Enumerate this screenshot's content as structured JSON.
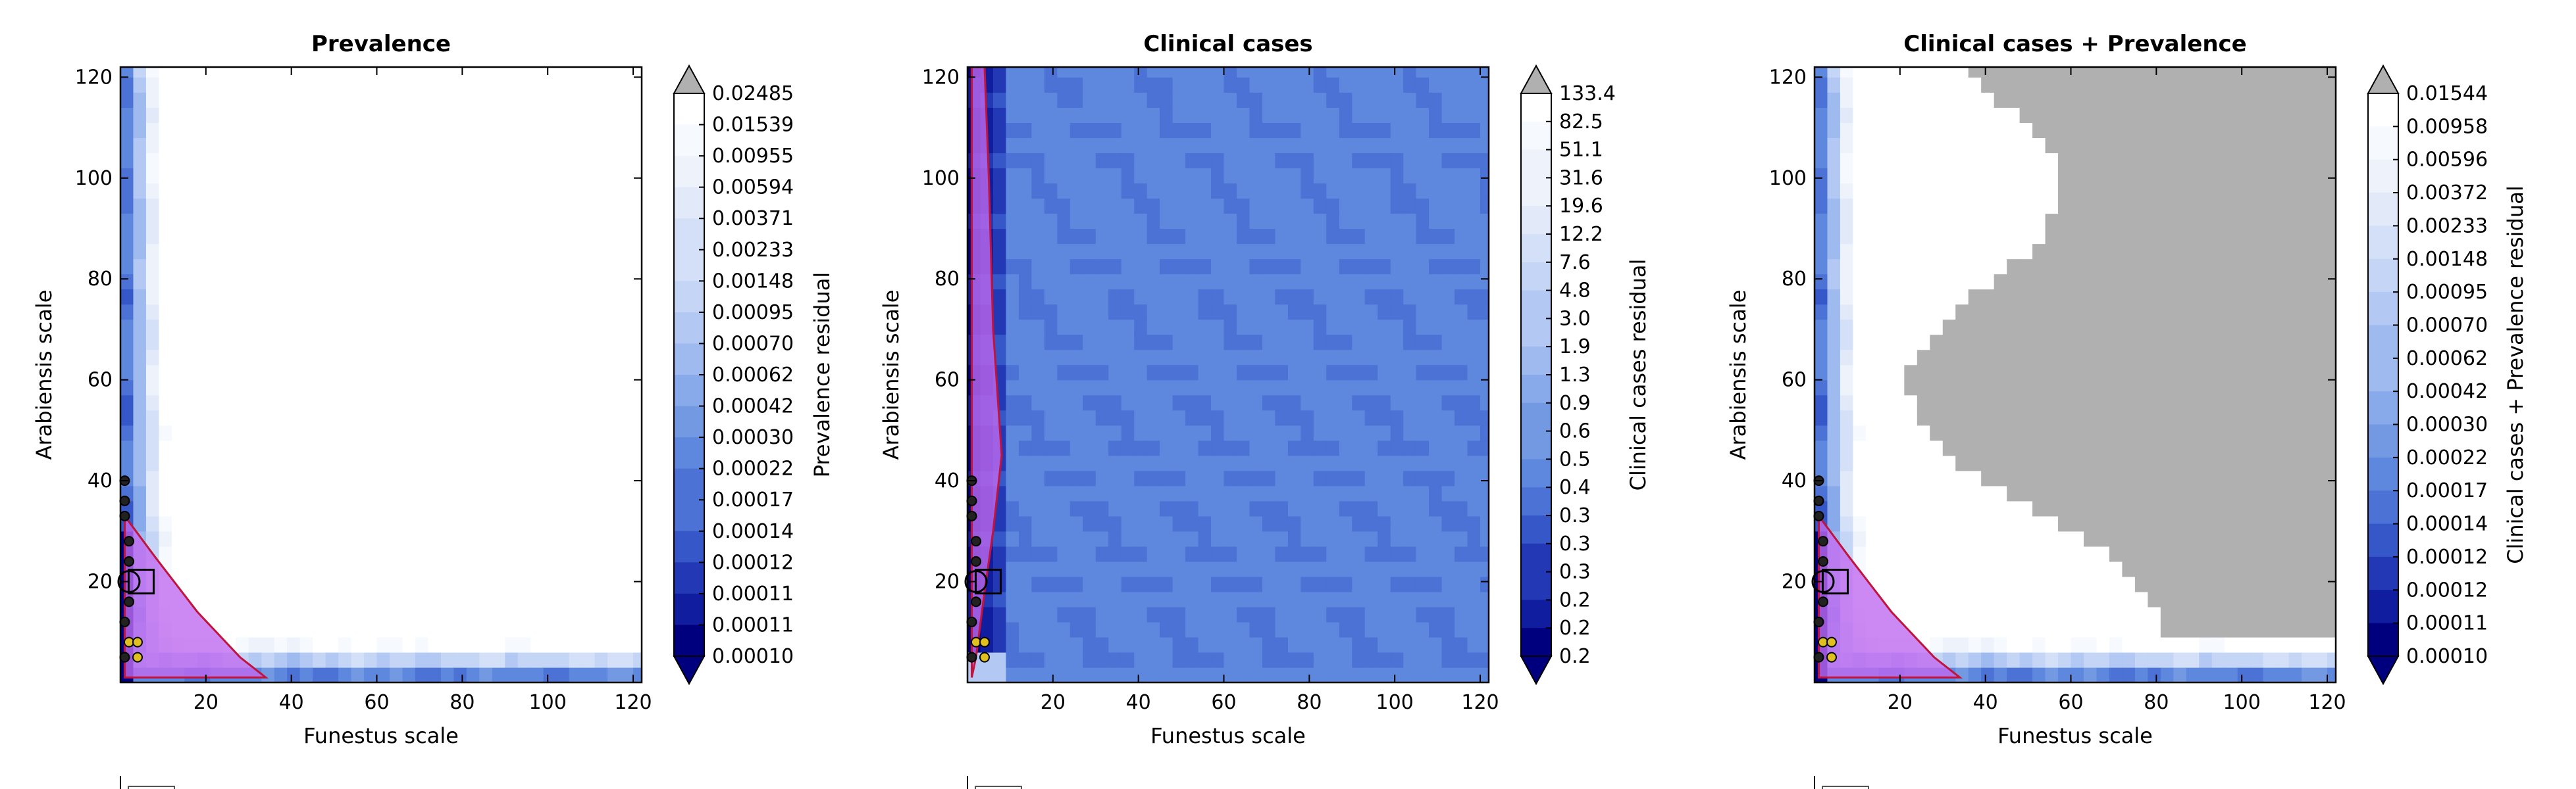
{
  "chart_data": [
    {
      "type": "heatmap",
      "title": "Prevalence",
      "xlabel": "Funestus scale",
      "ylabel": "Arabiensis scale",
      "xlim": [
        0,
        122
      ],
      "ylim": [
        0,
        122
      ],
      "xticks": [
        "20",
        "40",
        "60",
        "80",
        "100",
        "120"
      ],
      "yticks": [
        "20",
        "40",
        "60",
        "80",
        "100",
        "120"
      ],
      "colorbar_label": "Prevalence residual",
      "colorbar_ticks": [
        "0.02485",
        "0.01539",
        "0.00955",
        "0.00594",
        "0.00371",
        "0.00233",
        "0.00148",
        "0.00095",
        "0.00070",
        "0.00062",
        "0.00042",
        "0.00030",
        "0.00022",
        "0.00017",
        "0.00014",
        "0.00012",
        "0.00011",
        "0.00011",
        "0.00010"
      ],
      "best_fit_marker": [
        5,
        20
      ]
    },
    {
      "type": "heatmap",
      "title": "Clinical cases",
      "xlabel": "Funestus scale",
      "ylabel": "Arabiensis scale",
      "xlim": [
        0,
        122
      ],
      "ylim": [
        0,
        122
      ],
      "xticks": [
        "20",
        "40",
        "60",
        "80",
        "100",
        "120"
      ],
      "yticks": [
        "20",
        "40",
        "60",
        "80",
        "100",
        "120"
      ],
      "colorbar_label": "Clinical cases residual",
      "colorbar_ticks": [
        "133.4",
        "82.5",
        "51.1",
        "31.6",
        "19.6",
        "12.2",
        "7.6",
        "4.8",
        "3.0",
        "1.9",
        "1.3",
        "0.9",
        "0.6",
        "0.5",
        "0.4",
        "0.3",
        "0.3",
        "0.3",
        "0.2",
        "0.2",
        "0.2"
      ],
      "best_fit_marker": [
        5,
        20
      ]
    },
    {
      "type": "heatmap",
      "title": "Clinical cases + Prevalence",
      "xlabel": "Funestus scale",
      "ylabel": "Arabiensis scale",
      "xlim": [
        0,
        122
      ],
      "ylim": [
        0,
        122
      ],
      "xticks": [
        "20",
        "40",
        "60",
        "80",
        "100",
        "120"
      ],
      "yticks": [
        "20",
        "40",
        "60",
        "80",
        "100",
        "120"
      ],
      "colorbar_label": "Clinical cases + Prevalence residual",
      "colorbar_ticks": [
        "0.01544",
        "0.00958",
        "0.00596",
        "0.00372",
        "0.00233",
        "0.00148",
        "0.00095",
        "0.00070",
        "0.00062",
        "0.00042",
        "0.00030",
        "0.00022",
        "0.00017",
        "0.00014",
        "0.00012",
        "0.00012",
        "0.00011",
        "0.00010"
      ],
      "best_fit_marker": [
        5,
        20
      ]
    }
  ],
  "colors": {
    "scale": [
      "#00007f",
      "#0f1d9e",
      "#2238b4",
      "#3557c7",
      "#4b72d4",
      "#5e88dd",
      "#7399e3",
      "#89aaea",
      "#9fbaef",
      "#b3c8f2",
      "#c4d5f5",
      "#d4e0f7",
      "#e2eaf9",
      "#edf2fb",
      "#f6f9fd",
      "#ffffff"
    ],
    "over": "#b0b0b0",
    "contour_fill": "#c06cf0",
    "contour_line": "#c0143c",
    "marker_fill": "#e0c020"
  }
}
